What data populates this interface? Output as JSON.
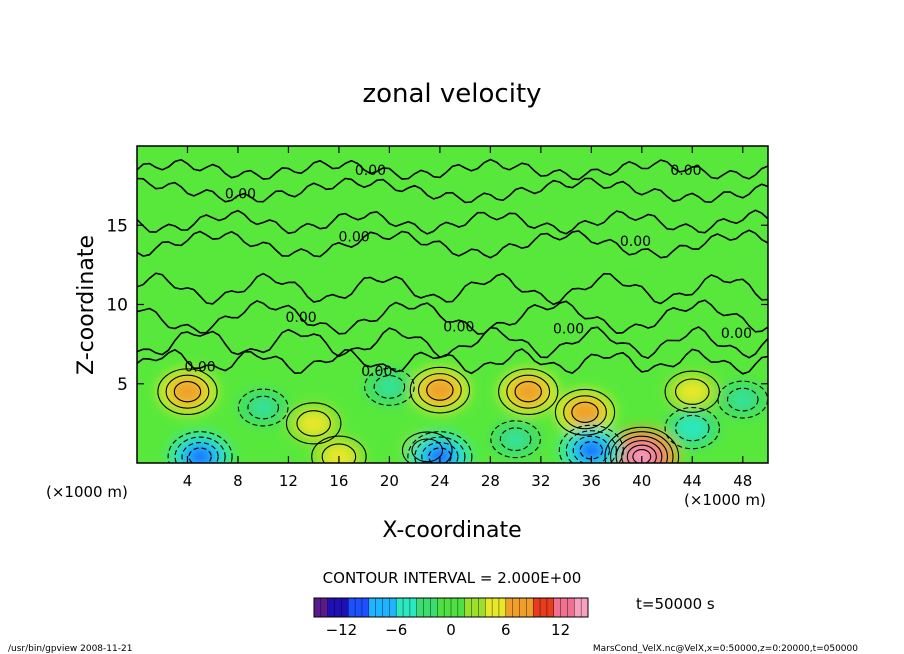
{
  "chart_data": {
    "type": "heatmap",
    "title": "zonal velocity",
    "xlabel": "X-coordinate",
    "ylabel": "Z-coordinate",
    "x_units_left": "(×1000 m)",
    "x_units_right": "(×1000 m)",
    "xlim": [
      0,
      50
    ],
    "ylim": [
      0,
      20
    ],
    "x_ticks": [
      4,
      8,
      12,
      16,
      20,
      24,
      28,
      32,
      36,
      40,
      44,
      48
    ],
    "y_ticks": [
      5,
      10,
      15
    ],
    "contour_interval_text": "CONTOUR INTERVAL = 2.000E+00",
    "contour_zero_label": "0.00",
    "contour_label_values": [
      0,
      0,
      0,
      0,
      0,
      0,
      0,
      0,
      0,
      0,
      0
    ],
    "colorbar": {
      "range": [
        -15,
        15
      ],
      "ticks": [
        -12,
        -6,
        0,
        6,
        12
      ],
      "colors": [
        "#5a1a8c",
        "#1e10b4",
        "#1e50ff",
        "#1eb4ff",
        "#2ce8c0",
        "#3cdc6e",
        "#4ee042",
        "#9ae02c",
        "#e8e82a",
        "#f0a02a",
        "#e83c1e",
        "#f07090",
        "#f8a0c0"
      ]
    },
    "time_label": "t=50000 s",
    "regions": [
      {
        "x": 4,
        "z": 4.5,
        "u": 8
      },
      {
        "x": 14,
        "z": 2.5,
        "u": 6
      },
      {
        "x": 16,
        "z": 0.4,
        "u": 6
      },
      {
        "x": 24,
        "z": 4.6,
        "u": 8
      },
      {
        "x": 23,
        "z": 0.8,
        "u": 4
      },
      {
        "x": 31,
        "z": 4.5,
        "u": 8
      },
      {
        "x": 35.5,
        "z": 3.2,
        "u": 8
      },
      {
        "x": 40,
        "z": 0.4,
        "u": 14
      },
      {
        "x": 44,
        "z": 4.5,
        "u": 6
      },
      {
        "x": 5,
        "z": 0.4,
        "u": -10
      },
      {
        "x": 24,
        "z": 0.4,
        "u": -10
      },
      {
        "x": 36,
        "z": 0.8,
        "u": -10
      },
      {
        "x": 20,
        "z": 4.8,
        "u": -4
      },
      {
        "x": 10,
        "z": 3.5,
        "u": -4
      },
      {
        "x": 30,
        "z": 1.5,
        "u": -4
      },
      {
        "x": 44,
        "z": 2.2,
        "u": -6
      },
      {
        "x": 48,
        "z": 4,
        "u": -4
      }
    ]
  },
  "footer": {
    "left": "/usr/bin/gpview   2008-11-21",
    "right": "MarsCond_VelX.nc@VelX,x=0:50000,z=0:20000,t=050000"
  }
}
